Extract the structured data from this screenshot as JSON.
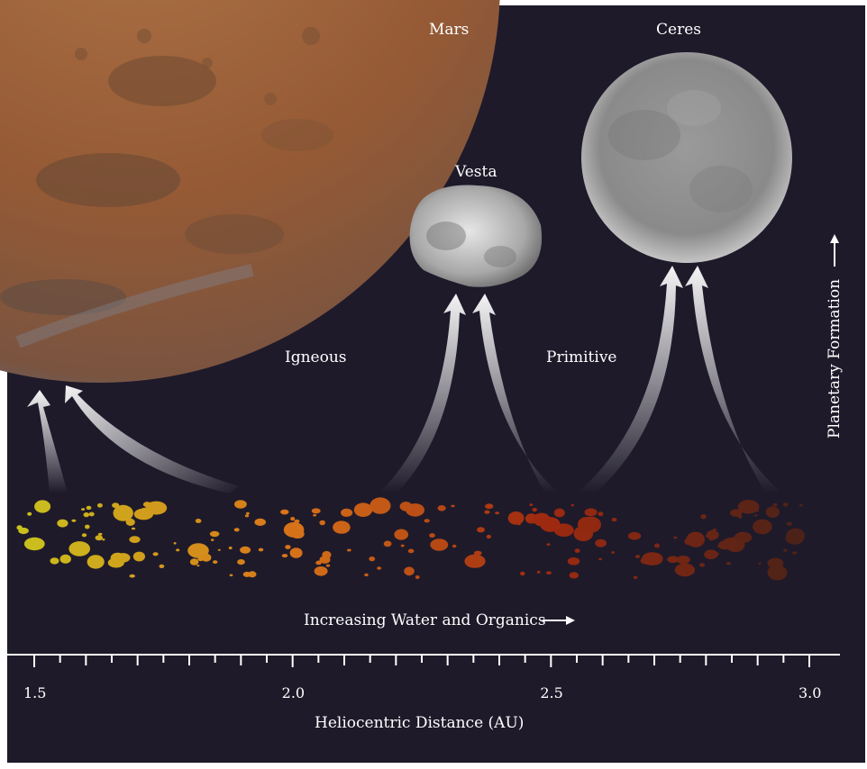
{
  "labels": {
    "mars": "Mars",
    "vesta": "Vesta",
    "ceres": "Ceres",
    "igneous": "Igneous",
    "primitive": "Primitive",
    "planetary_formation": "Planetary Formation",
    "increasing_water": "Increasing Water and Organics",
    "axis_title": "Heliocentric Distance (AU)"
  },
  "axis": {
    "min": 1.45,
    "max": 3.05,
    "major_ticks": [
      1.5,
      2.0,
      2.5,
      3.0
    ],
    "major_labels": [
      "1.5",
      "2.0",
      "2.5",
      "3.0"
    ],
    "minor_step": 0.1
  },
  "colors": {
    "background": "#1e1a2a",
    "frame": "#ffffff",
    "mars": "#a0653c",
    "vesta": "#b8b8b8",
    "ceres": "#9c9c9c",
    "asteroid_inner": "#c9c21e",
    "asteroid_mid": "#d9761a",
    "asteroid_outer": "#a02a10",
    "asteroid_far": "#4a2218"
  }
}
